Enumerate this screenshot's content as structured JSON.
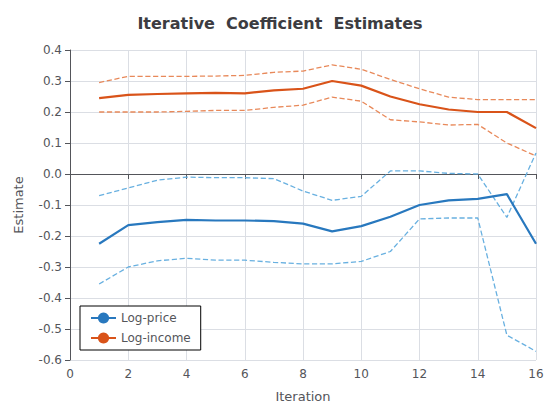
{
  "chart_data": {
    "type": "line",
    "title": "Iterative  Coefficient  Estimates",
    "xlabel": "Iteration",
    "ylabel": "Estimate",
    "x": [
      1,
      2,
      3,
      4,
      5,
      6,
      7,
      8,
      9,
      10,
      11,
      12,
      13,
      14,
      15,
      16
    ],
    "xlim": [
      0,
      16
    ],
    "ylim": [
      -0.6,
      0.4
    ],
    "xticks": [
      0,
      2,
      4,
      6,
      8,
      10,
      12,
      14,
      16
    ],
    "yticks": [
      -0.6,
      -0.5,
      -0.4,
      -0.3,
      -0.2,
      -0.1,
      {
        "value": 0.0,
        "label": "0.0"
      },
      0.1,
      0.2,
      0.3,
      0.4
    ],
    "grid": true,
    "legend": "lower left",
    "series": [
      {
        "color": "#68B0E0",
        "line_style": "dashed",
        "values": [
          -0.07,
          -0.045,
          -0.02,
          -0.01,
          -0.012,
          -0.012,
          -0.015,
          -0.055,
          -0.085,
          -0.072,
          0.01,
          0.01,
          0.002,
          0.0,
          -0.14,
          0.068
        ]
      },
      {
        "color": "#68B0E0",
        "line_style": "dashed",
        "values": [
          -0.355,
          -0.3,
          -0.28,
          -0.272,
          -0.278,
          -0.278,
          -0.285,
          -0.29,
          -0.29,
          -0.282,
          -0.25,
          -0.145,
          -0.142,
          -0.142,
          -0.52,
          -0.572
        ]
      },
      {
        "color": "#E8895A",
        "line_style": "dashed",
        "values": [
          0.295,
          0.315,
          0.315,
          0.315,
          0.316,
          0.318,
          0.328,
          0.332,
          0.352,
          0.338,
          0.305,
          0.275,
          0.248,
          0.24,
          0.24,
          0.24
        ]
      },
      {
        "color": "#E8895A",
        "line_style": "dashed",
        "values": [
          0.2,
          0.2,
          0.2,
          0.202,
          0.205,
          0.205,
          0.215,
          0.222,
          0.248,
          0.235,
          0.175,
          0.168,
          0.158,
          0.16,
          0.1,
          0.058
        ]
      },
      {
        "name": "Log-price",
        "color": "#2878BE",
        "line_style": "solid",
        "values": [
          -0.225,
          -0.165,
          -0.155,
          -0.148,
          -0.15,
          -0.15,
          -0.152,
          -0.16,
          -0.185,
          -0.168,
          -0.138,
          -0.1,
          -0.085,
          -0.08,
          -0.065,
          -0.225
        ]
      },
      {
        "name": "Log-income",
        "color": "#D95319",
        "line_style": "solid",
        "values": [
          0.245,
          0.255,
          0.258,
          0.26,
          0.262,
          0.26,
          0.27,
          0.275,
          0.3,
          0.285,
          0.25,
          0.225,
          0.208,
          0.2,
          0.2,
          0.148
        ]
      }
    ]
  }
}
